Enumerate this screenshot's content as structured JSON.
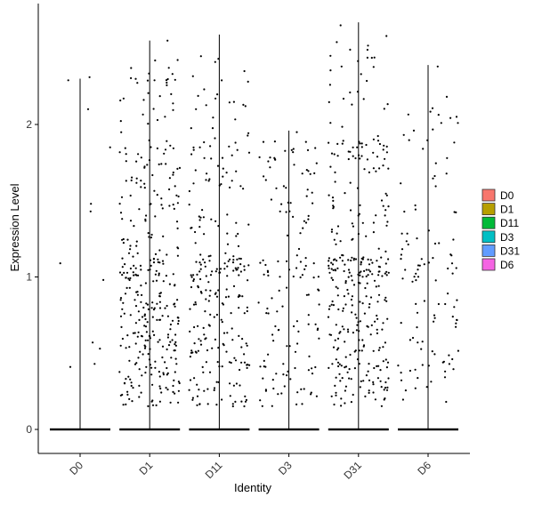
{
  "chart_data": {
    "type": "violin",
    "xlabel": "Identity",
    "ylabel": "Expression Level",
    "ylim": [
      -0.15,
      2.8
    ],
    "yticks": [
      0,
      1,
      2
    ],
    "categories": [
      "D0",
      "D1",
      "D11",
      "D3",
      "D31",
      "D6"
    ],
    "legend": {
      "position": "right",
      "entries": [
        {
          "label": "D0",
          "color": "#F8766D"
        },
        {
          "label": "D1",
          "color": "#B79F00"
        },
        {
          "label": "D11",
          "color": "#00BA38"
        },
        {
          "label": "D3",
          "color": "#00BFC4"
        },
        {
          "label": "D31",
          "color": "#619CFF"
        },
        {
          "label": "D6",
          "color": "#F564E3"
        }
      ]
    },
    "grid": false,
    "violin_max": [
      2.3,
      2.55,
      2.59,
      1.96,
      2.67,
      2.39
    ],
    "nonzero_point_counts": [
      12,
      340,
      260,
      140,
      340,
      110
    ],
    "highlighted_points": [
      {
        "group": "D0",
        "values": [
          2.31,
          2.29,
          2.1,
          1.85,
          1.48,
          1.43,
          1.09,
          0.98,
          0.57,
          0.53,
          0.43,
          0.41
        ]
      },
      {
        "group": "D1",
        "values": [
          2.55,
          2.37,
          2.29
        ]
      },
      {
        "group": "D11",
        "values": [
          2.35,
          2.17,
          2.1
        ]
      },
      {
        "group": "D3",
        "values": [
          1.95,
          1.78,
          1.68
        ]
      },
      {
        "group": "D31",
        "values": [
          2.65,
          2.58,
          2.54,
          2.49,
          2.38,
          2.33
        ]
      },
      {
        "group": "D6",
        "values": [
          2.38,
          1.96,
          1.84
        ]
      }
    ]
  }
}
